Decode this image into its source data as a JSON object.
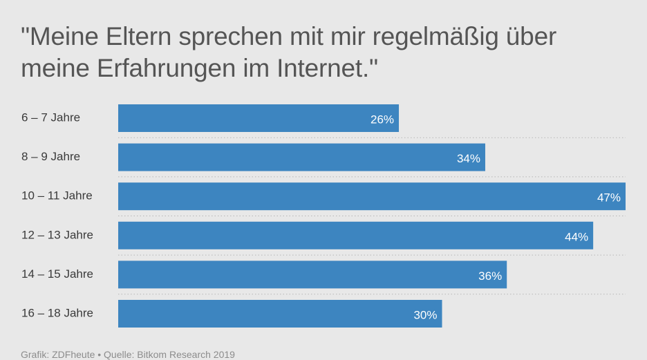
{
  "chart_data": {
    "type": "bar",
    "orientation": "horizontal",
    "title": "\"Meine Eltern sprechen mit mir regelmäßig über meine Erfahrungen im Internet.\"",
    "categories": [
      "6 – 7 Jahre",
      "8 – 9 Jahre",
      "10 – 11 Jahre",
      "12 – 13 Jahre",
      "14 – 15 Jahre",
      "16 – 18 Jahre"
    ],
    "values": [
      26,
      34,
      47,
      44,
      36,
      30
    ],
    "value_labels": [
      "26%",
      "34%",
      "47%",
      "44%",
      "36%",
      "30%"
    ],
    "unit": "%",
    "xlim": [
      0,
      47
    ],
    "grid": false,
    "bar_color": "#3d85c0",
    "source": "Grafik: ZDFheute • Quelle: Bitkom Research 2019"
  }
}
